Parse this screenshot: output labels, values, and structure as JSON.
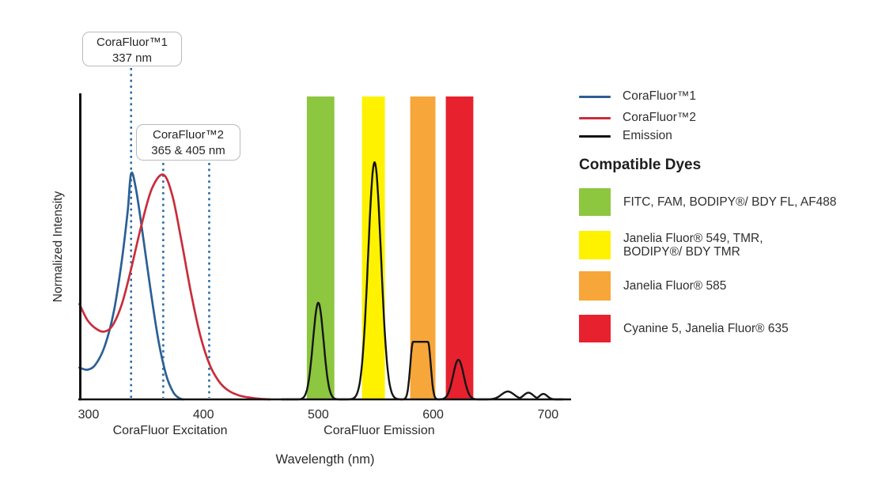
{
  "figure": {
    "callouts": [
      {
        "title": "CoraFluor™1",
        "value": "337 nm"
      },
      {
        "title": "CoraFluor™2",
        "value": "365 & 405 nm"
      }
    ],
    "legend": {
      "series": [
        {
          "label": "CoraFluor™1",
          "color": "#2b5f94"
        },
        {
          "label": "CoraFluor™2",
          "color": "#c92d3b"
        },
        {
          "label": "Emission",
          "color": "#141414"
        }
      ],
      "dyes_heading": "Compatible Dyes",
      "dyes": [
        {
          "name": "green",
          "color": "#8dc63f",
          "label": "FITC, FAM, BODIPY®/ BDY FL, AF488"
        },
        {
          "name": "yellow",
          "color": "#fef200",
          "label": "Janelia Fluor® 549, TMR,\nBODIPY®/ BDY TMR"
        },
        {
          "name": "orange",
          "color": "#f7a63a",
          "label": "Janelia Fluor® 585"
        },
        {
          "name": "red",
          "color": "#e8212f",
          "label": "Cyanine 5, Janelia Fluor® 635"
        }
      ]
    }
  },
  "chart_data": {
    "type": "line",
    "xlabel": "Wavelength (nm)",
    "ylabel": "Normalized Intensity",
    "x_ticks": [
      300,
      400,
      500,
      600,
      700
    ],
    "x_range_nm": [
      292,
      716
    ],
    "ylim": [
      0,
      1
    ],
    "grid": false,
    "axis_color": "#121212",
    "section_labels": [
      {
        "text": "CoraFluor Excitation",
        "center_nm": 371
      },
      {
        "text": "CoraFluor Emission",
        "center_nm": 553
      }
    ],
    "excitation_lines_nm": [
      337,
      365,
      405
    ],
    "excitation_line_color": "#2e6da4",
    "filter_bands": [
      {
        "name": "green",
        "color": "#8dc63f",
        "range_nm": [
          490,
          514
        ]
      },
      {
        "name": "yellow",
        "color": "#fef200",
        "range_nm": [
          538,
          558
        ]
      },
      {
        "name": "orange",
        "color": "#f7a63a",
        "range_nm": [
          580,
          602
        ]
      },
      {
        "name": "red",
        "color": "#e8212f",
        "range_nm": [
          611,
          635
        ]
      }
    ],
    "series": [
      {
        "name": "CoraFluor™1 excitation",
        "color": "#2b5f94",
        "peak_nm": 337,
        "points": [
          [
            292,
            0.105
          ],
          [
            299,
            0.098
          ],
          [
            306,
            0.115
          ],
          [
            314,
            0.175
          ],
          [
            322,
            0.29
          ],
          [
            329,
            0.46
          ],
          [
            334,
            0.62
          ],
          [
            337,
            0.745
          ],
          [
            341,
            0.7
          ],
          [
            347,
            0.55
          ],
          [
            354,
            0.36
          ],
          [
            361,
            0.19
          ],
          [
            368,
            0.075
          ],
          [
            374,
            0.022
          ],
          [
            379,
            0.004
          ],
          [
            382,
            0
          ]
        ]
      },
      {
        "name": "CoraFluor™2 excitation",
        "color": "#c92d3b",
        "peak_nm": 365,
        "points": [
          [
            292,
            0.315
          ],
          [
            299,
            0.262
          ],
          [
            307,
            0.232
          ],
          [
            314,
            0.224
          ],
          [
            321,
            0.245
          ],
          [
            329,
            0.315
          ],
          [
            337,
            0.43
          ],
          [
            346,
            0.575
          ],
          [
            355,
            0.695
          ],
          [
            365,
            0.742
          ],
          [
            373,
            0.672
          ],
          [
            381,
            0.52
          ],
          [
            389,
            0.355
          ],
          [
            397,
            0.215
          ],
          [
            405,
            0.118
          ],
          [
            413,
            0.062
          ],
          [
            421,
            0.031
          ],
          [
            431,
            0.013
          ],
          [
            442,
            0.005
          ],
          [
            452,
            0.001
          ],
          [
            458,
            0
          ]
        ]
      },
      {
        "name": "Emission",
        "color": "#141414",
        "peaks": [
          [
            500,
            0.319,
            4.6
          ],
          [
            549,
            0.783,
            5.6
          ],
          [
            622,
            0.131,
            4.6
          ],
          [
            665,
            0.026,
            5.5
          ],
          [
            683,
            0.022,
            4.2
          ],
          [
            696,
            0.018,
            3.4
          ]
        ],
        "plateaus": [
          {
            "from": 582.5,
            "to": 595.5,
            "i": 0.19,
            "s": 2.4
          }
        ]
      }
    ]
  }
}
